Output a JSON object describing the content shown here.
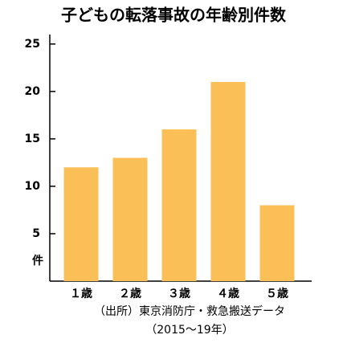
{
  "chart_data": {
    "type": "bar",
    "title": "子どもの転落事故の年齢別件数",
    "categories": [
      "１歳",
      "２歳",
      "３歳",
      "４歳",
      "５歳"
    ],
    "values": [
      12,
      13,
      16,
      21,
      8
    ],
    "color": "#fbbf57",
    "ylim": [
      0,
      26
    ],
    "yticks": [
      5,
      10,
      15,
      20,
      25
    ],
    "ylabel": "件",
    "source": [
      "（出所）東京消防庁・救急搬送データ",
      "（2015～19年）"
    ]
  }
}
